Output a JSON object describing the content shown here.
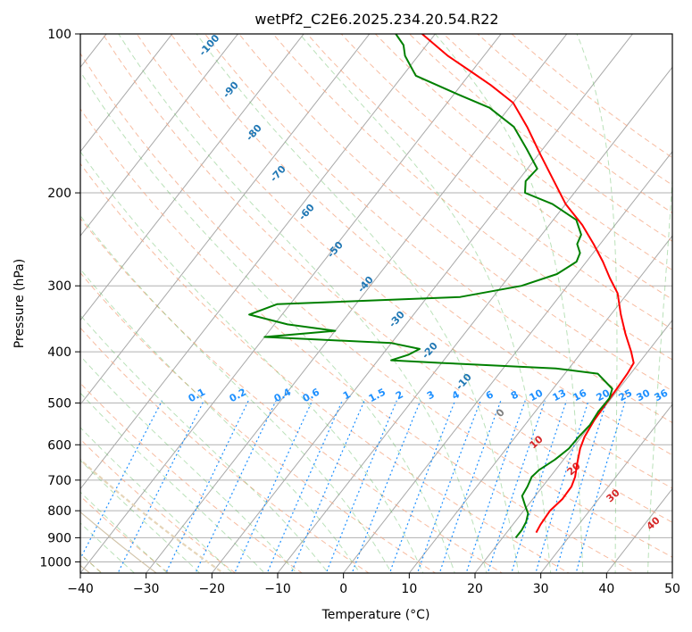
{
  "chart_data": {
    "type": "line",
    "kind": "skew-T log-P diagram",
    "title": "wetPf2_C2E6.2025.234.20.54.R22",
    "xlabel": "Temperature (°C)",
    "ylabel": "Pressure (hPa)",
    "xlim": [
      -40,
      50
    ],
    "ylim": [
      1050,
      100
    ],
    "x_ticks": [
      -40,
      -30,
      -20,
      -10,
      0,
      10,
      20,
      30,
      40,
      50
    ],
    "y_ticks": [
      100,
      200,
      300,
      400,
      500,
      600,
      700,
      800,
      900,
      1000
    ],
    "grid": true,
    "series": [
      {
        "name": "temperature",
        "color": "#ff0000",
        "points": [
          [
            880,
            24.5
          ],
          [
            850,
            24.2
          ],
          [
            800,
            24.0
          ],
          [
            760,
            24.5
          ],
          [
            720,
            24.4
          ],
          [
            690,
            23.8
          ],
          [
            650,
            22.5
          ],
          [
            610,
            21.2
          ],
          [
            580,
            20.5
          ],
          [
            540,
            20.0
          ],
          [
            500,
            19.8
          ],
          [
            470,
            19.7
          ],
          [
            440,
            19.5
          ],
          [
            420,
            19.2
          ],
          [
            400,
            17.5
          ],
          [
            370,
            14.5
          ],
          [
            340,
            11.5
          ],
          [
            310,
            8.5
          ],
          [
            290,
            5.5
          ],
          [
            270,
            2.5
          ],
          [
            250,
            -1.0
          ],
          [
            230,
            -5.0
          ],
          [
            210,
            -10.0
          ],
          [
            190,
            -14.5
          ],
          [
            170,
            -19.5
          ],
          [
            150,
            -25.0
          ],
          [
            135,
            -30.0
          ],
          [
            125,
            -35.5
          ],
          [
            118,
            -40.0
          ],
          [
            110,
            -45.5
          ],
          [
            100,
            -52.0
          ]
        ]
      },
      {
        "name": "dewpoint",
        "color": "#008000",
        "points": [
          [
            900,
            22.0
          ],
          [
            870,
            22.0
          ],
          [
            840,
            21.7
          ],
          [
            810,
            21.0
          ],
          [
            780,
            19.5
          ],
          [
            750,
            18.0
          ],
          [
            720,
            17.7
          ],
          [
            690,
            17.2
          ],
          [
            670,
            17.5
          ],
          [
            640,
            18.7
          ],
          [
            610,
            19.5
          ],
          [
            580,
            19.6
          ],
          [
            550,
            19.9
          ],
          [
            520,
            19.6
          ],
          [
            490,
            19.7
          ],
          [
            470,
            19.0
          ],
          [
            440,
            15.0
          ],
          [
            430,
            8.0
          ],
          [
            420,
            -10.0
          ],
          [
            415,
            -18.0
          ],
          [
            405,
            -16.0
          ],
          [
            395,
            -15.0
          ],
          [
            385,
            -20.0
          ],
          [
            375,
            -40.0
          ],
          [
            365,
            -30.0
          ],
          [
            355,
            -38.0
          ],
          [
            340,
            -45.0
          ],
          [
            325,
            -42.0
          ],
          [
            315,
            -15.0
          ],
          [
            300,
            -7.0
          ],
          [
            285,
            -3.0
          ],
          [
            270,
            -1.5
          ],
          [
            260,
            -2.0
          ],
          [
            250,
            -3.5
          ],
          [
            240,
            -4.0
          ],
          [
            225,
            -6.5
          ],
          [
            210,
            -12.0
          ],
          [
            200,
            -17.5
          ],
          [
            190,
            -18.8
          ],
          [
            180,
            -18.5
          ],
          [
            165,
            -22.5
          ],
          [
            150,
            -27.0
          ],
          [
            138,
            -33.0
          ],
          [
            130,
            -39.5
          ],
          [
            120,
            -48.0
          ],
          [
            110,
            -52.0
          ],
          [
            105,
            -53.5
          ],
          [
            100,
            -56.0
          ]
        ]
      }
    ],
    "dry_adiabat_labels": [
      "10",
      "20",
      "30",
      "40"
    ],
    "moist_adiabat_labels": [
      "-100",
      "-90",
      "-80",
      "-70",
      "-60",
      "-50",
      "-40",
      "-30",
      "-20",
      "-10",
      "0"
    ],
    "mixing_ratio_labels": [
      "0.1",
      "0.2",
      "0.4",
      "0.6",
      "1",
      "1.5",
      "2",
      "3",
      "4",
      "6",
      "8",
      "10",
      "13",
      "16",
      "20",
      "25",
      "30",
      "36"
    ]
  }
}
